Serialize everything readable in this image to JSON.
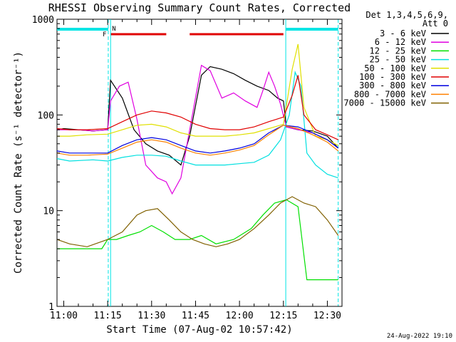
{
  "chart_data": {
    "type": "line",
    "title": "RHESSI Observing Summary Count Rates, Corrected",
    "xlabel": "Start Time (07-Aug-02 10:57:42)",
    "ylabel": "Corrected Count Rate (s⁻¹ detector⁻¹)",
    "yscale": "log",
    "xlim": [
      "10:57:42",
      "12:35:00"
    ],
    "ylim": [
      1,
      1000
    ],
    "x_tick_labels": [
      "11:00",
      "11:15",
      "11:30",
      "11:45",
      "12:00",
      "12:15",
      "12:30"
    ],
    "x_ticks_min": [
      60,
      75,
      90,
      105,
      120,
      135,
      150
    ],
    "y_ticks": [
      1,
      10,
      100,
      1000
    ],
    "y_tick_labels": [
      "1",
      "10",
      "100",
      "1000"
    ],
    "legend_header": [
      "Det 1,3,4,5,6,9,",
      "Att 0"
    ],
    "legend_position": "right",
    "timestamp": "24-Aug-2022 19:10",
    "flags": {
      "N_label": "N",
      "F_label": "F",
      "night_color": "#00e5e5",
      "flare_color": "#e00000",
      "night_intervals_min": [
        [
          57.7,
          75.2
        ],
        [
          135.8,
          153.7
        ]
      ],
      "flare_intervals_min": [
        [
          76.0,
          95.0
        ],
        [
          103.0,
          135.0
        ]
      ],
      "dashed_lines_min": [
        75.2,
        153.7
      ],
      "solid_lines_min": [
        76.0,
        135.8
      ]
    },
    "series": [
      {
        "name": "3 - 6 keV",
        "color": "#000000",
        "points": [
          [
            57.7,
            70
          ],
          [
            60,
            72
          ],
          [
            65,
            70
          ],
          [
            70,
            68
          ],
          [
            75,
            70
          ],
          [
            76,
            230
          ],
          [
            80,
            150
          ],
          [
            84,
            70
          ],
          [
            88,
            50
          ],
          [
            92,
            42
          ],
          [
            96,
            38
          ],
          [
            100,
            30
          ],
          [
            103,
            60
          ],
          [
            107,
            260
          ],
          [
            110,
            320
          ],
          [
            114,
            300
          ],
          [
            118,
            270
          ],
          [
            122,
            230
          ],
          [
            126,
            200
          ],
          [
            130,
            180
          ],
          [
            133,
            150
          ],
          [
            135,
            140
          ],
          [
            136,
            75
          ],
          [
            140,
            70
          ],
          [
            145,
            68
          ],
          [
            150,
            60
          ],
          [
            153.7,
            45
          ]
        ]
      },
      {
        "name": "6 - 12 keV",
        "color": "#e000e0",
        "points": [
          [
            57.7,
            70
          ],
          [
            60,
            70
          ],
          [
            65,
            70
          ],
          [
            70,
            68
          ],
          [
            75,
            70
          ],
          [
            76,
            140
          ],
          [
            79,
            200
          ],
          [
            82,
            220
          ],
          [
            85,
            90
          ],
          [
            88,
            30
          ],
          [
            92,
            22
          ],
          [
            95,
            20
          ],
          [
            97,
            15
          ],
          [
            100,
            22
          ],
          [
            103,
            70
          ],
          [
            107,
            330
          ],
          [
            110,
            290
          ],
          [
            114,
            150
          ],
          [
            118,
            170
          ],
          [
            122,
            140
          ],
          [
            126,
            120
          ],
          [
            128,
            180
          ],
          [
            130,
            280
          ],
          [
            132,
            200
          ],
          [
            134,
            130
          ],
          [
            136,
            75
          ],
          [
            140,
            70
          ],
          [
            145,
            65
          ],
          [
            150,
            55
          ],
          [
            153.7,
            45
          ]
        ]
      },
      {
        "name": "12 - 25 keV",
        "color": "#00e000",
        "points": [
          [
            57.7,
            4
          ],
          [
            65,
            4
          ],
          [
            73,
            4
          ],
          [
            75,
            5
          ],
          [
            78,
            5
          ],
          [
            82,
            5.5
          ],
          [
            86,
            6
          ],
          [
            90,
            7
          ],
          [
            94,
            6
          ],
          [
            98,
            5
          ],
          [
            103,
            5
          ],
          [
            107,
            5.5
          ],
          [
            112,
            4.5
          ],
          [
            118,
            5
          ],
          [
            124,
            6.5
          ],
          [
            128,
            9
          ],
          [
            132,
            12
          ],
          [
            136,
            13
          ],
          [
            140,
            11
          ],
          [
            143,
            1.9
          ],
          [
            153.7,
            1.9
          ]
        ]
      },
      {
        "name": "25 - 50 keV",
        "color": "#00e0e0",
        "points": [
          [
            57.7,
            35
          ],
          [
            62,
            33
          ],
          [
            70,
            34
          ],
          [
            75,
            33
          ],
          [
            80,
            36
          ],
          [
            85,
            38
          ],
          [
            90,
            38
          ],
          [
            95,
            37
          ],
          [
            100,
            33
          ],
          [
            105,
            30
          ],
          [
            110,
            30
          ],
          [
            115,
            30
          ],
          [
            120,
            31
          ],
          [
            125,
            32
          ],
          [
            130,
            38
          ],
          [
            134,
            55
          ],
          [
            137,
            100
          ],
          [
            139,
            280
          ],
          [
            141,
            200
          ],
          [
            143,
            40
          ],
          [
            146,
            30
          ],
          [
            150,
            24
          ],
          [
            153.7,
            22
          ]
        ]
      },
      {
        "name": "50 - 100 keV",
        "color": "#e0e000",
        "points": [
          [
            57.7,
            60
          ],
          [
            62,
            60
          ],
          [
            68,
            62
          ],
          [
            75,
            63
          ],
          [
            80,
            70
          ],
          [
            85,
            78
          ],
          [
            90,
            80
          ],
          [
            95,
            75
          ],
          [
            100,
            65
          ],
          [
            105,
            60
          ],
          [
            110,
            60
          ],
          [
            115,
            60
          ],
          [
            120,
            62
          ],
          [
            125,
            65
          ],
          [
            130,
            72
          ],
          [
            135,
            80
          ],
          [
            138,
            300
          ],
          [
            140,
            550
          ],
          [
            142,
            120
          ],
          [
            146,
            60
          ],
          [
            150,
            55
          ],
          [
            153.7,
            48
          ]
        ]
      },
      {
        "name": "100 - 300 keV",
        "color": "#e00000",
        "points": [
          [
            57.7,
            72
          ],
          [
            62,
            70
          ],
          [
            68,
            70
          ],
          [
            75,
            72
          ],
          [
            80,
            85
          ],
          [
            85,
            100
          ],
          [
            90,
            110
          ],
          [
            95,
            105
          ],
          [
            100,
            95
          ],
          [
            105,
            80
          ],
          [
            110,
            72
          ],
          [
            115,
            70
          ],
          [
            120,
            70
          ],
          [
            125,
            75
          ],
          [
            130,
            85
          ],
          [
            135,
            95
          ],
          [
            138,
            160
          ],
          [
            140,
            260
          ],
          [
            142,
            100
          ],
          [
            146,
            70
          ],
          [
            150,
            62
          ],
          [
            153.7,
            55
          ]
        ]
      },
      {
        "name": "300 - 800 keV",
        "color": "#0000e0",
        "points": [
          [
            57.7,
            42
          ],
          [
            62,
            40
          ],
          [
            68,
            40
          ],
          [
            75,
            40
          ],
          [
            80,
            48
          ],
          [
            85,
            55
          ],
          [
            90,
            58
          ],
          [
            95,
            55
          ],
          [
            100,
            48
          ],
          [
            105,
            42
          ],
          [
            110,
            40
          ],
          [
            115,
            42
          ],
          [
            120,
            45
          ],
          [
            125,
            50
          ],
          [
            130,
            65
          ],
          [
            135,
            78
          ],
          [
            140,
            75
          ],
          [
            145,
            65
          ],
          [
            150,
            55
          ],
          [
            153.7,
            45
          ]
        ]
      },
      {
        "name": "800 - 7000 keV",
        "color": "#ff8000",
        "points": [
          [
            57.7,
            40
          ],
          [
            62,
            38
          ],
          [
            68,
            38
          ],
          [
            75,
            39
          ],
          [
            80,
            45
          ],
          [
            85,
            52
          ],
          [
            90,
            55
          ],
          [
            95,
            52
          ],
          [
            100,
            45
          ],
          [
            105,
            40
          ],
          [
            110,
            38
          ],
          [
            115,
            40
          ],
          [
            120,
            43
          ],
          [
            125,
            48
          ],
          [
            130,
            62
          ],
          [
            135,
            78
          ],
          [
            140,
            72
          ],
          [
            145,
            62
          ],
          [
            150,
            52
          ],
          [
            153.7,
            42
          ]
        ]
      },
      {
        "name": "7000 - 15000 keV",
        "color": "#806000",
        "points": [
          [
            57.7,
            5
          ],
          [
            62,
            4.5
          ],
          [
            68,
            4.2
          ],
          [
            75,
            5
          ],
          [
            80,
            6
          ],
          [
            85,
            9
          ],
          [
            88,
            10
          ],
          [
            92,
            10.5
          ],
          [
            96,
            8
          ],
          [
            100,
            6
          ],
          [
            104,
            5
          ],
          [
            108,
            4.5
          ],
          [
            112,
            4.2
          ],
          [
            116,
            4.5
          ],
          [
            120,
            5
          ],
          [
            125,
            6.5
          ],
          [
            130,
            9
          ],
          [
            134,
            12
          ],
          [
            138,
            14
          ],
          [
            142,
            12
          ],
          [
            146,
            11
          ],
          [
            150,
            8
          ],
          [
            153.7,
            5.5
          ]
        ]
      }
    ]
  }
}
